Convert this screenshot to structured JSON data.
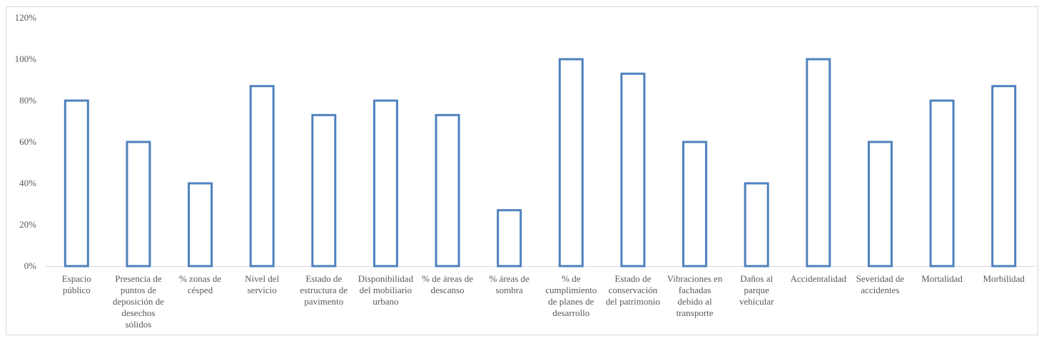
{
  "chart_data": {
    "type": "bar",
    "title": "",
    "xlabel": "",
    "ylabel": "",
    "ylim": [
      0,
      120
    ],
    "y_ticks": [
      "0%",
      "20%",
      "40%",
      "60%",
      "80%",
      "100%",
      "120%"
    ],
    "grid": false,
    "bar_style": "outline",
    "colors": {
      "bar_stroke": "#4f81bd",
      "axis": "#d9d9d9",
      "text": "#595959"
    },
    "categories": [
      "Espacio público",
      "Presencia de puntos de deposición de desechos sólidos",
      "% zonas de césped",
      "Nivel del servicio",
      "Estado de estructura de pavimento",
      "Disponibilidad del mobiliario urbano",
      "% de áreas de descanso",
      "% áreas de sombra",
      "% de cumplimiento de planes de desarrollo",
      "Estado de conservación del patrimonio",
      "Vibraciones en fachadas debido al transporte",
      "Daños al parque vehícular",
      "Accidentalidad",
      "Severidad de accidentes",
      "Mortalidad",
      "Morbilidad"
    ],
    "category_label_lines": [
      [
        "Espacio",
        "público"
      ],
      [
        "Presencia de",
        "puntos de",
        "deposición de",
        "desechos",
        "sólidos"
      ],
      [
        "% zonas de",
        "césped"
      ],
      [
        "Nivel del",
        "servicio"
      ],
      [
        "Estado de",
        "estructura de",
        "pavimento"
      ],
      [
        "Disponibilidad",
        "del mobiliario",
        "urbano"
      ],
      [
        "% de áreas de",
        "descanso"
      ],
      [
        "% áreas de",
        "sombra"
      ],
      [
        "% de",
        "cumplimiento",
        "de planes de",
        "desarrollo"
      ],
      [
        "Estado de",
        "conservación",
        "del patrimonio"
      ],
      [
        "Vibraciones en",
        "fachadas",
        "debido al",
        "transporte"
      ],
      [
        "Daños al",
        "parque",
        "vehícular"
      ],
      [
        "Accidentalidad"
      ],
      [
        "Severidad de",
        "accidentes"
      ],
      [
        "Mortalidad"
      ],
      [
        "Morbilidad"
      ]
    ],
    "values": [
      80,
      60,
      40,
      87,
      73,
      80,
      73,
      27,
      100,
      93,
      60,
      40,
      100,
      60,
      80,
      87
    ]
  }
}
